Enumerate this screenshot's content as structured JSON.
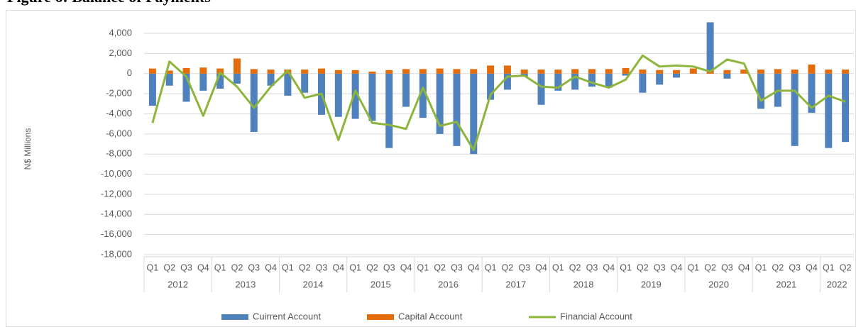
{
  "chart_data": {
    "type": "bar",
    "title": "Figure 6: Balance of Payments",
    "y_label": "N$ Millions",
    "categories": [
      "Q1",
      "Q2",
      "Q3",
      "Q4",
      "Q1",
      "Q2",
      "Q3",
      "Q4",
      "Q1",
      "Q2",
      "Q3",
      "Q4",
      "Q1",
      "Q2",
      "Q3",
      "Q4",
      "Q1",
      "Q2",
      "Q3",
      "Q4",
      "Q1",
      "Q2",
      "Q3",
      "Q4",
      "Q1",
      "Q2",
      "Q3",
      "Q4",
      "Q1",
      "Q2",
      "Q3",
      "Q4",
      "Q1",
      "Q2",
      "Q3",
      "Q4",
      "Q1",
      "Q2",
      "Q3",
      "Q4",
      "Q1",
      "Q2"
    ],
    "years": [
      "2012",
      "2013",
      "2014",
      "2015",
      "2016",
      "2017",
      "2018",
      "2019",
      "2020",
      "2021",
      "2022"
    ],
    "series": [
      {
        "name": "Cuirrent Account",
        "color": "#4f81bd",
        "kind": "bar",
        "values": [
          -3200,
          -1200,
          -2800,
          -1700,
          -1500,
          -1000,
          -5800,
          -1200,
          -2200,
          -1900,
          -4100,
          -4300,
          -4500,
          -4700,
          -7400,
          -3300,
          -4400,
          -6000,
          -7200,
          -8000,
          -2600,
          -1600,
          -300,
          -3100,
          -1700,
          -1600,
          -1300,
          -1400,
          -200,
          -1900,
          -1100,
          -400,
          100,
          5100,
          -500,
          0,
          -3500,
          -3300,
          -7200,
          -3900,
          -7400,
          -6800
        ]
      },
      {
        "name": "Capital Account",
        "color": "#e46c0a",
        "kind": "bar",
        "values": [
          500,
          300,
          550,
          600,
          500,
          1500,
          450,
          400,
          400,
          400,
          500,
          350,
          350,
          200,
          350,
          450,
          450,
          500,
          450,
          450,
          800,
          800,
          400,
          400,
          400,
          450,
          450,
          450,
          550,
          400,
          350,
          350,
          500,
          300,
          350,
          400,
          400,
          450,
          400,
          900,
          400,
          400
        ]
      },
      {
        "name": "Financial Account",
        "color": "#8db53c",
        "kind": "line",
        "values": [
          -4900,
          1200,
          -300,
          -4200,
          100,
          -1300,
          -3400,
          -1300,
          300,
          -2400,
          -2000,
          -6600,
          -1700,
          -4900,
          -5100,
          -5500,
          -1400,
          -5200,
          -4800,
          -7600,
          -2100,
          -300,
          -200,
          -1300,
          -1400,
          -300,
          -900,
          -1400,
          -600,
          1800,
          700,
          800,
          700,
          200,
          1400,
          1000,
          -2700,
          -1700,
          -1700,
          -3400,
          -2200,
          -2800
        ]
      }
    ],
    "ylim": [
      -18000,
      5200
    ],
    "yticks": [
      {
        "value": -18000,
        "label": "-18,000"
      },
      {
        "value": -16000,
        "label": "-16,000"
      },
      {
        "value": -14000,
        "label": "-14,000"
      },
      {
        "value": -12000,
        "label": "-12,000"
      },
      {
        "value": -10000,
        "label": "-10,000"
      },
      {
        "value": -8000,
        "label": "-8,000"
      },
      {
        "value": -6000,
        "label": "-6,000"
      },
      {
        "value": -4000,
        "label": "-4,000"
      },
      {
        "value": -2000,
        "label": "-2,000"
      },
      0,
      {
        "value": 2000,
        "label": "2,000"
      },
      {
        "value": 4000,
        "label": "4,000"
      }
    ],
    "grid": true,
    "legend": "bottom"
  }
}
